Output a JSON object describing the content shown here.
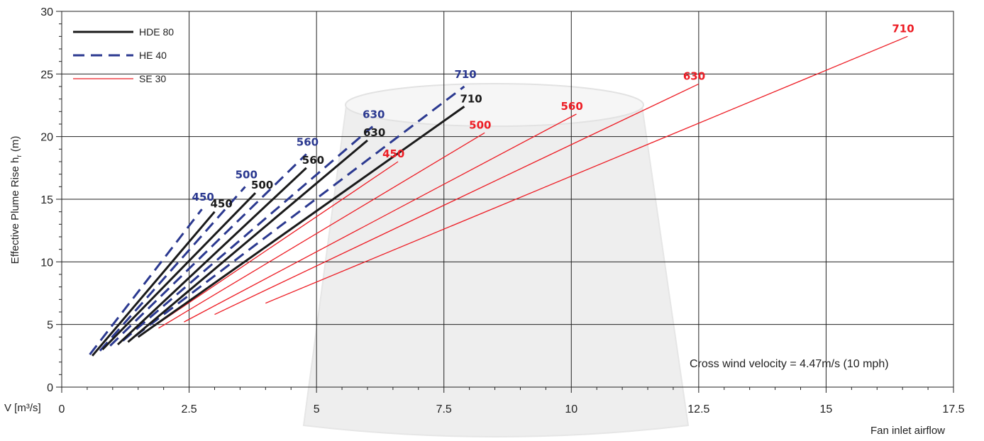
{
  "chart_data": {
    "type": "line",
    "title": "",
    "ylabel": "Effective Plume Rise h",
    "ylabel_sub": "r",
    "ylabel_unit": " (m)",
    "xlabel_left": "V [m³/s]",
    "xlabel": "Fan inlet airflow",
    "annotation": "Cross wind velocity = 4.47m/s (10 mph)",
    "xlim": [
      0,
      17.5
    ],
    "ylim": [
      0,
      30
    ],
    "x_ticks": [
      0,
      2.5,
      5,
      7.5,
      10,
      12.5,
      15,
      17.5
    ],
    "x_tick_labels": [
      "0",
      "2.5",
      "5",
      "7.5",
      "10",
      "12.5",
      "15",
      "17.5"
    ],
    "y_ticks": [
      0,
      5,
      10,
      15,
      20,
      25,
      30
    ],
    "y_tick_labels": [
      "0",
      "5",
      "10",
      "15",
      "20",
      "25",
      "30"
    ],
    "grid": true,
    "legend_position": "top-left",
    "series_styles": [
      {
        "name": "HDE 80",
        "color": "#1a1a1a",
        "width": 3,
        "dash": ""
      },
      {
        "name": "HE 40",
        "color": "#2b3990",
        "width": 3,
        "dash": "16,9"
      },
      {
        "name": "SE 30",
        "color": "#ed1c24",
        "width": 1.3,
        "dash": ""
      }
    ],
    "series": [
      {
        "family": "HDE 80",
        "label": "450",
        "x": [
          0.6,
          3.0
        ],
        "y": [
          2.5,
          14.0
        ]
      },
      {
        "family": "HDE 80",
        "label": "500",
        "x": [
          0.8,
          3.8
        ],
        "y": [
          3.0,
          15.5
        ]
      },
      {
        "family": "HDE 80",
        "label": "560",
        "x": [
          1.1,
          4.8
        ],
        "y": [
          3.4,
          17.5
        ]
      },
      {
        "family": "HDE 80",
        "label": "630",
        "x": [
          1.3,
          6.0
        ],
        "y": [
          3.6,
          19.7
        ]
      },
      {
        "family": "HDE 80",
        "label": "710",
        "x": [
          1.5,
          7.9
        ],
        "y": [
          4.0,
          22.4
        ]
      },
      {
        "family": "HE 40",
        "label": "450",
        "x": [
          0.55,
          2.75
        ],
        "y": [
          2.6,
          14.2
        ]
      },
      {
        "family": "HE 40",
        "label": "500",
        "x": [
          0.75,
          3.6
        ],
        "y": [
          2.9,
          16.0
        ]
      },
      {
        "family": "HE 40",
        "label": "560",
        "x": [
          0.95,
          4.8
        ],
        "y": [
          3.3,
          18.6
        ]
      },
      {
        "family": "HE 40",
        "label": "630",
        "x": [
          1.2,
          6.1
        ],
        "y": [
          3.7,
          20.8
        ]
      },
      {
        "family": "HE 40",
        "label": "710",
        "x": [
          1.45,
          7.9
        ],
        "y": [
          4.1,
          24.0
        ]
      },
      {
        "family": "SE 30",
        "label": "450",
        "x": [
          1.5,
          6.6
        ],
        "y": [
          4.0,
          18.0
        ]
      },
      {
        "family": "SE 30",
        "label": "500",
        "x": [
          1.9,
          8.3
        ],
        "y": [
          4.7,
          20.3
        ]
      },
      {
        "family": "SE 30",
        "label": "560",
        "x": [
          2.4,
          10.1
        ],
        "y": [
          5.2,
          21.8
        ]
      },
      {
        "family": "SE 30",
        "label": "630",
        "x": [
          3.0,
          12.5
        ],
        "y": [
          5.8,
          24.2
        ]
      },
      {
        "family": "SE 30",
        "label": "710",
        "x": [
          4.0,
          16.6
        ],
        "y": [
          6.7,
          28.0
        ]
      }
    ]
  }
}
